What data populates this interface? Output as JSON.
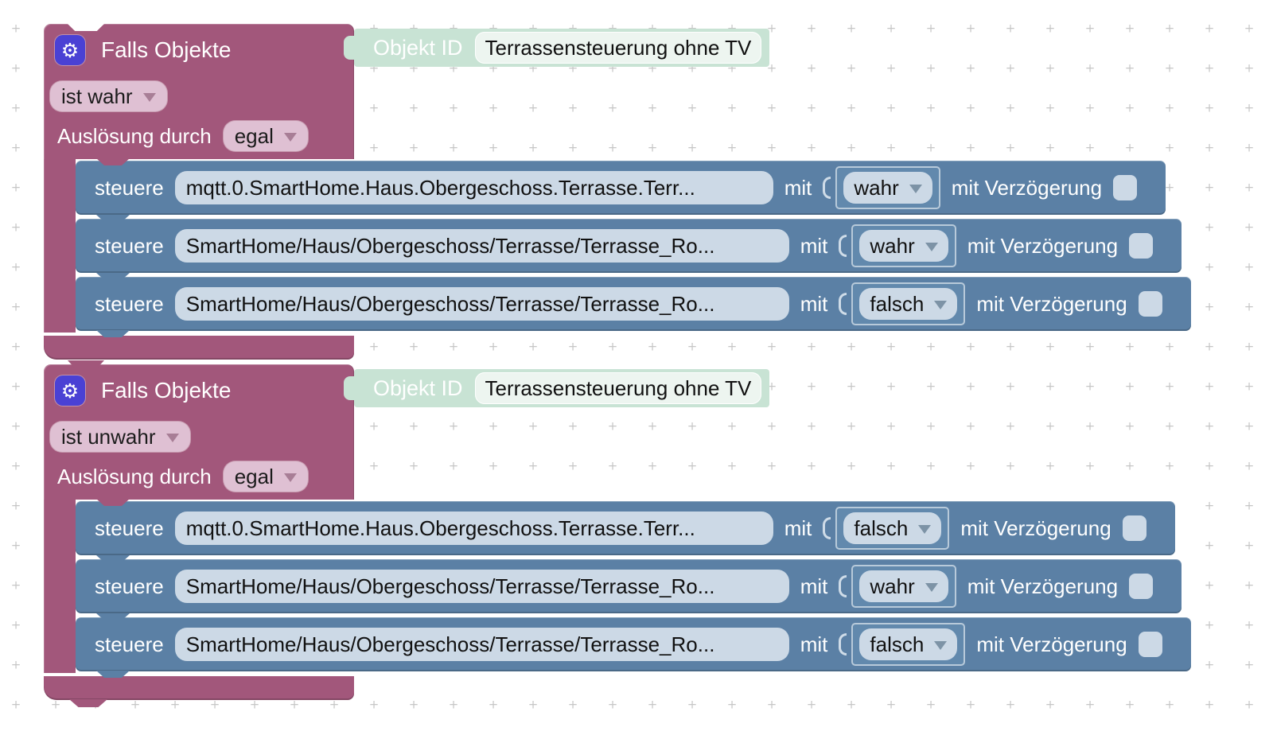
{
  "colors": {
    "falls_block": "#a2577b",
    "steuere_block": "#5b80a5",
    "objekt_id_block": "#c8e3d4",
    "field": "#ccd9e6",
    "pink_dropdown": "#dfc0d3",
    "gear_badge": "#4a41d4"
  },
  "icons": {
    "gear": "⚙"
  },
  "blocks": [
    {
      "header": "Falls Objekte",
      "objekt_id": {
        "label": "Objekt ID",
        "value": "Terrassensteuerung ohne TV"
      },
      "condition": "ist wahr",
      "trigger_label": "Auslösung durch",
      "trigger_value": "egal",
      "statements": [
        {
          "verb": "steuere",
          "object": "mqtt.0.SmartHome.Haus.Obergeschoss.Terrasse.Terr...",
          "mit": "mit",
          "value": "wahr",
          "delay_label": "mit Verzögerung",
          "delay_checked": false
        },
        {
          "verb": "steuere",
          "object": "SmartHome/Haus/Obergeschoss/Terrasse/Terrasse_Ro...",
          "mit": "mit",
          "value": "wahr",
          "delay_label": "mit Verzögerung",
          "delay_checked": false
        },
        {
          "verb": "steuere",
          "object": "SmartHome/Haus/Obergeschoss/Terrasse/Terrasse_Ro...",
          "mit": "mit",
          "value": "falsch",
          "delay_label": "mit Verzögerung",
          "delay_checked": false
        }
      ]
    },
    {
      "header": "Falls Objekte",
      "objekt_id": {
        "label": "Objekt ID",
        "value": "Terrassensteuerung ohne TV"
      },
      "condition": "ist unwahr",
      "trigger_label": "Auslösung durch",
      "trigger_value": "egal",
      "statements": [
        {
          "verb": "steuere",
          "object": "mqtt.0.SmartHome.Haus.Obergeschoss.Terrasse.Terr...",
          "mit": "mit",
          "value": "falsch",
          "delay_label": "mit Verzögerung",
          "delay_checked": false
        },
        {
          "verb": "steuere",
          "object": "SmartHome/Haus/Obergeschoss/Terrasse/Terrasse_Ro...",
          "mit": "mit",
          "value": "wahr",
          "delay_label": "mit Verzögerung",
          "delay_checked": false
        },
        {
          "verb": "steuere",
          "object": "SmartHome/Haus/Obergeschoss/Terrasse/Terrasse_Ro...",
          "mit": "mit",
          "value": "falsch",
          "delay_label": "mit Verzögerung",
          "delay_checked": false
        }
      ]
    }
  ]
}
